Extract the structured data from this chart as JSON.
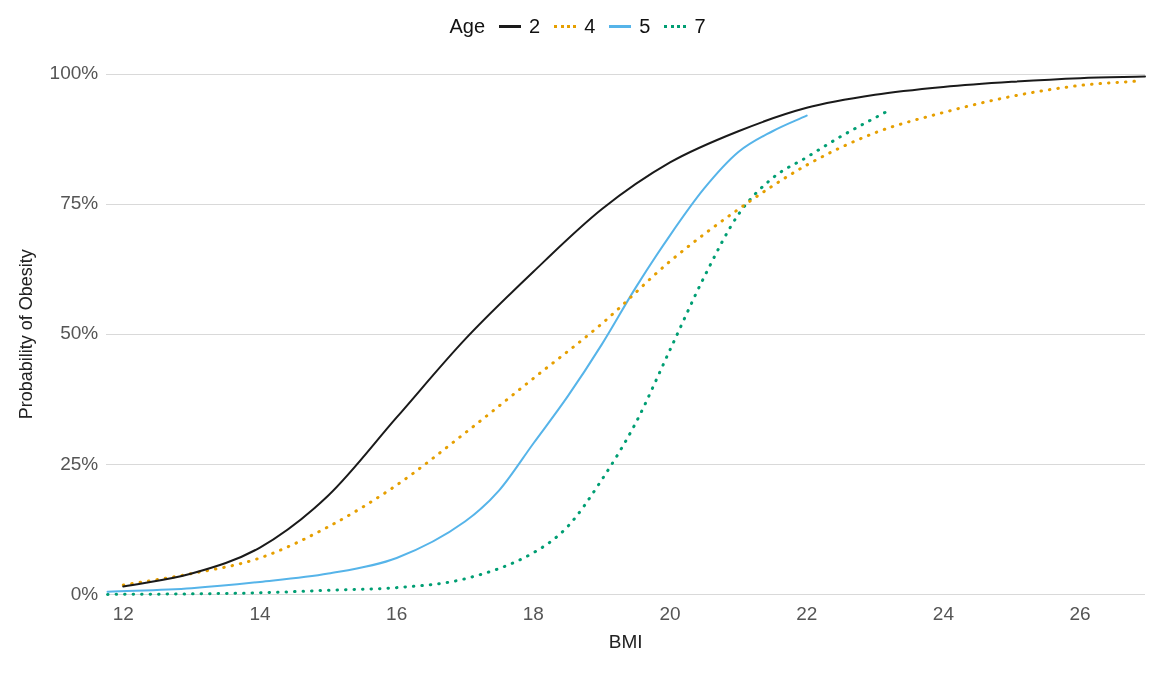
{
  "chart_data": {
    "type": "line",
    "xlabel": "BMI",
    "ylabel": "Probability of Obesity",
    "legend_title": "Age",
    "legend": "top",
    "grid": "y",
    "marker": "none",
    "xlim": [
      11.75,
      26.95
    ],
    "xticks": [
      12,
      14,
      16,
      18,
      20,
      22,
      24,
      26
    ],
    "ylim": [
      0,
      100
    ],
    "yticks": [
      {
        "value": 0,
        "label": "0%"
      },
      {
        "value": 25,
        "label": "25%"
      },
      {
        "value": 50,
        "label": "50%"
      },
      {
        "value": 75,
        "label": "75%"
      },
      {
        "value": 100,
        "label": "100%"
      }
    ],
    "series": [
      {
        "name": "2",
        "color": "#1a1a1a",
        "line_style": "solid",
        "x": [
          12,
          13,
          14,
          15,
          16,
          17,
          18,
          19,
          20,
          21,
          22,
          23,
          24,
          25,
          26,
          26.95
        ],
        "values": [
          1.5,
          4,
          9,
          19,
          34,
          49,
          62,
          74,
          83,
          89,
          93.5,
          96,
          97.5,
          98.5,
          99.2,
          99.5
        ]
      },
      {
        "name": "4",
        "color": "#e69f00",
        "line_style": "dotted",
        "x": [
          12,
          13,
          14,
          15,
          16,
          17,
          18,
          19,
          20,
          21,
          22,
          23,
          24,
          25,
          26,
          26.8
        ],
        "values": [
          1.8,
          4,
          7,
          13,
          21,
          31,
          41.5,
          52,
          64,
          74,
          82.5,
          88.7,
          92.6,
          95.7,
          97.8,
          98.6
        ]
      },
      {
        "name": "5",
        "color": "#56b4e9",
        "line_style": "solid",
        "x": [
          11.77,
          13,
          14,
          15,
          16,
          17,
          17.5,
          18,
          18.5,
          19,
          19.5,
          20,
          20.5,
          21,
          21.5,
          22
        ],
        "values": [
          0.5,
          1.2,
          2.4,
          4,
          7,
          14,
          20,
          29,
          38,
          48,
          59,
          69,
          78,
          85,
          89,
          92
        ]
      },
      {
        "name": "7",
        "color": "#009e73",
        "line_style": "dotted",
        "x": [
          11.77,
          13,
          14,
          15,
          16,
          17,
          18,
          18.5,
          19,
          19.5,
          20,
          20.5,
          21,
          21.5,
          22,
          22.5,
          23.2
        ],
        "values": [
          0,
          0.1,
          0.3,
          0.8,
          1.3,
          3,
          8,
          13,
          22,
          33,
          47,
          61,
          73,
          80,
          84,
          88,
          93
        ]
      }
    ]
  }
}
